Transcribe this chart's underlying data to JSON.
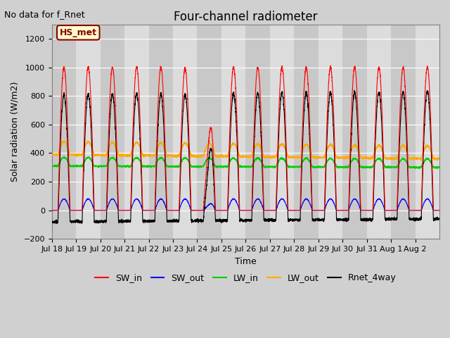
{
  "title": "Four-channel radiometer",
  "subtitle": "No data for f_Rnet",
  "ylabel": "Solar radiation (W/m2)",
  "xlabel": "Time",
  "ylim": [
    -200,
    1300
  ],
  "yticks": [
    -200,
    0,
    200,
    400,
    600,
    800,
    1000,
    1200
  ],
  "annotation_box": "HS_met",
  "legend_entries": [
    "SW_in",
    "SW_out",
    "LW_in",
    "LW_out",
    "Rnet_4way"
  ],
  "legend_colors": [
    "#ff0000",
    "#0000ff",
    "#00cc00",
    "#ffaa00",
    "#000000"
  ],
  "xtick_labels": [
    "Jul 18",
    "Jul 19",
    "Jul 20",
    "Jul 21",
    "Jul 22",
    "Jul 23",
    "Jul 24",
    "Jul 25",
    "Jul 26",
    "Jul 27",
    "Jul 28",
    "Jul 29",
    "Jul 30",
    "Jul 31",
    "Aug 1",
    "Aug 2"
  ],
  "n_days": 16,
  "pts_per_day": 288
}
